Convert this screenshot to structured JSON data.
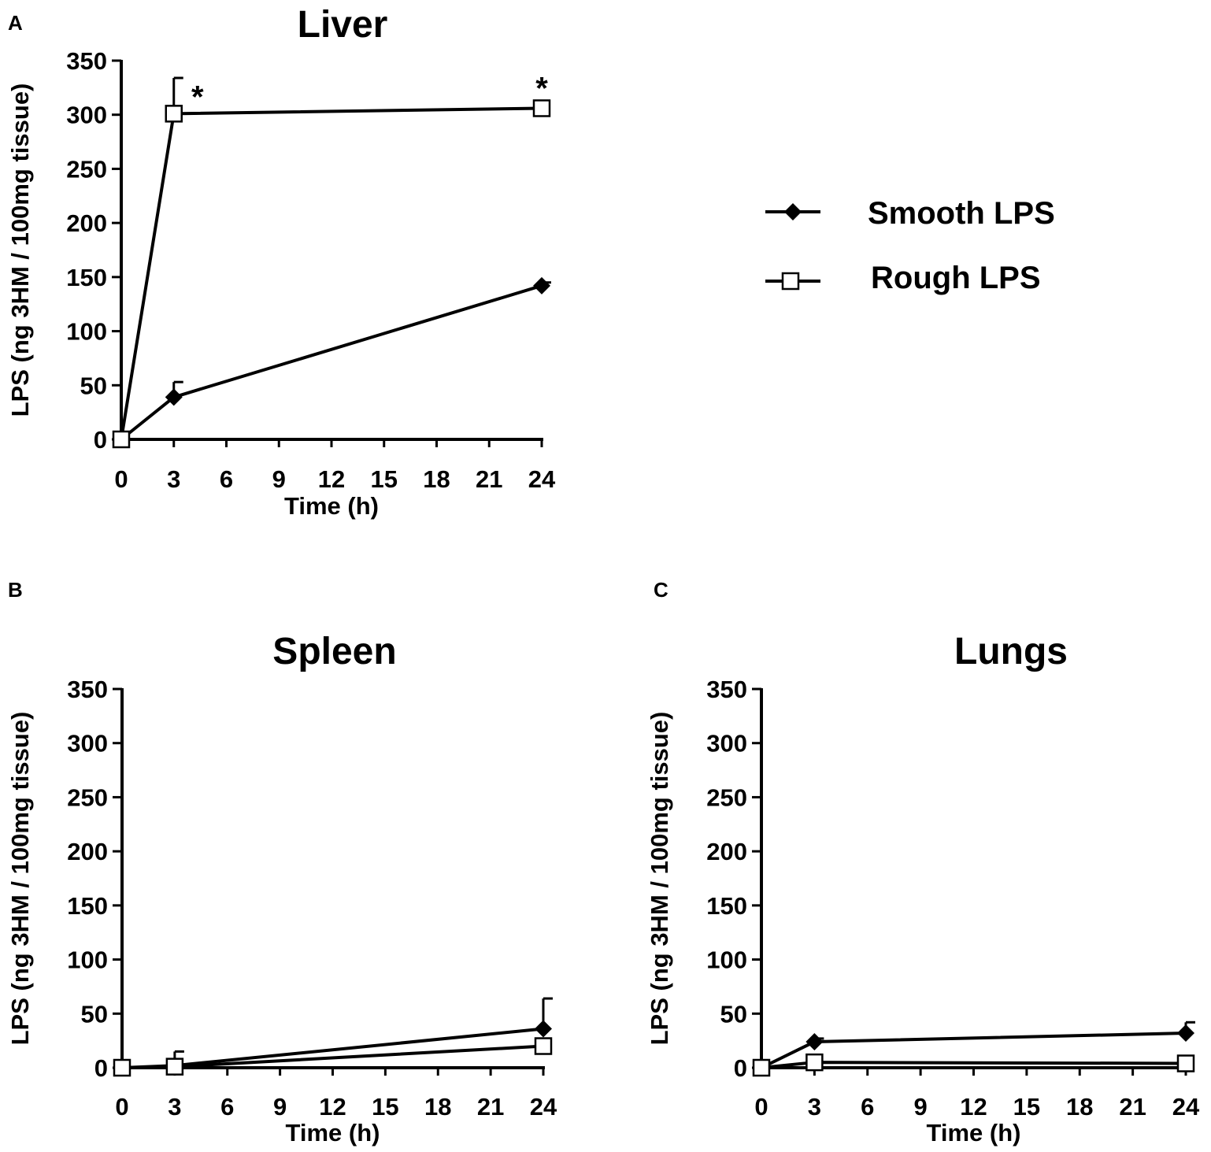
{
  "legend": {
    "items": [
      {
        "label": "Smooth LPS",
        "marker": "filled-diamond"
      },
      {
        "label": "Rough LPS",
        "marker": "open-square"
      }
    ]
  },
  "chart_data": [
    {
      "panel": "A",
      "type": "line",
      "title": "Liver",
      "xlabel": "Time (h)",
      "ylabel": "LPS (ng 3HM / 100mg tissue)",
      "xlim": [
        0,
        24
      ],
      "ylim": [
        0,
        350
      ],
      "xticks": [
        "0",
        "3",
        "6",
        "9",
        "12",
        "15",
        "18",
        "21",
        "24"
      ],
      "yticks": [
        "0",
        "50",
        "100",
        "150",
        "200",
        "250",
        "300",
        "350"
      ],
      "grid": false,
      "series": [
        {
          "name": "Smooth LPS",
          "marker": "filled-diamond",
          "x": [
            0,
            3,
            24
          ],
          "y": [
            0,
            39,
            142
          ],
          "error": [
            0,
            14,
            3
          ]
        },
        {
          "name": "Rough LPS",
          "marker": "open-square",
          "x": [
            0,
            3,
            24
          ],
          "y": [
            0,
            301,
            306
          ],
          "error": [
            0,
            33,
            0
          ]
        }
      ],
      "annotations": [
        {
          "text": "*",
          "x": 3,
          "y": 301
        },
        {
          "text": "*",
          "x": 24,
          "y": 306
        }
      ]
    },
    {
      "panel": "B",
      "type": "line",
      "title": "Spleen",
      "xlabel": "Time (h)",
      "ylabel": "LPS (ng 3HM / 100mg tissue)",
      "xlim": [
        0,
        24
      ],
      "ylim": [
        0,
        350
      ],
      "xticks": [
        "0",
        "3",
        "6",
        "9",
        "12",
        "15",
        "18",
        "21",
        "24"
      ],
      "yticks": [
        "0",
        "50",
        "100",
        "150",
        "200",
        "250",
        "300",
        "350"
      ],
      "grid": false,
      "series": [
        {
          "name": "Smooth LPS",
          "marker": "filled-diamond",
          "x": [
            0,
            3,
            24
          ],
          "y": [
            0,
            2,
            36
          ],
          "error": [
            0,
            13,
            28
          ]
        },
        {
          "name": "Rough LPS",
          "marker": "open-square",
          "x": [
            0,
            3,
            24
          ],
          "y": [
            0,
            1,
            20
          ],
          "error": [
            0,
            0,
            0
          ]
        }
      ],
      "annotations": []
    },
    {
      "panel": "C",
      "type": "line",
      "title": "Lungs",
      "xlabel": "Time (h)",
      "ylabel": "LPS (ng 3HM / 100mg tissue)",
      "xlim": [
        0,
        24
      ],
      "ylim": [
        0,
        350
      ],
      "xticks": [
        "0",
        "3",
        "6",
        "9",
        "12",
        "15",
        "18",
        "21",
        "24"
      ],
      "yticks": [
        "0",
        "50",
        "100",
        "150",
        "200",
        "250",
        "300",
        "350"
      ],
      "grid": false,
      "series": [
        {
          "name": "Smooth LPS",
          "marker": "filled-diamond",
          "x": [
            0,
            3,
            24
          ],
          "y": [
            0,
            24,
            32
          ],
          "error": [
            0,
            3,
            10
          ]
        },
        {
          "name": "Rough LPS",
          "marker": "open-square",
          "x": [
            0,
            3,
            24
          ],
          "y": [
            0,
            5,
            4
          ],
          "error": [
            0,
            0,
            0
          ]
        }
      ],
      "annotations": []
    }
  ]
}
